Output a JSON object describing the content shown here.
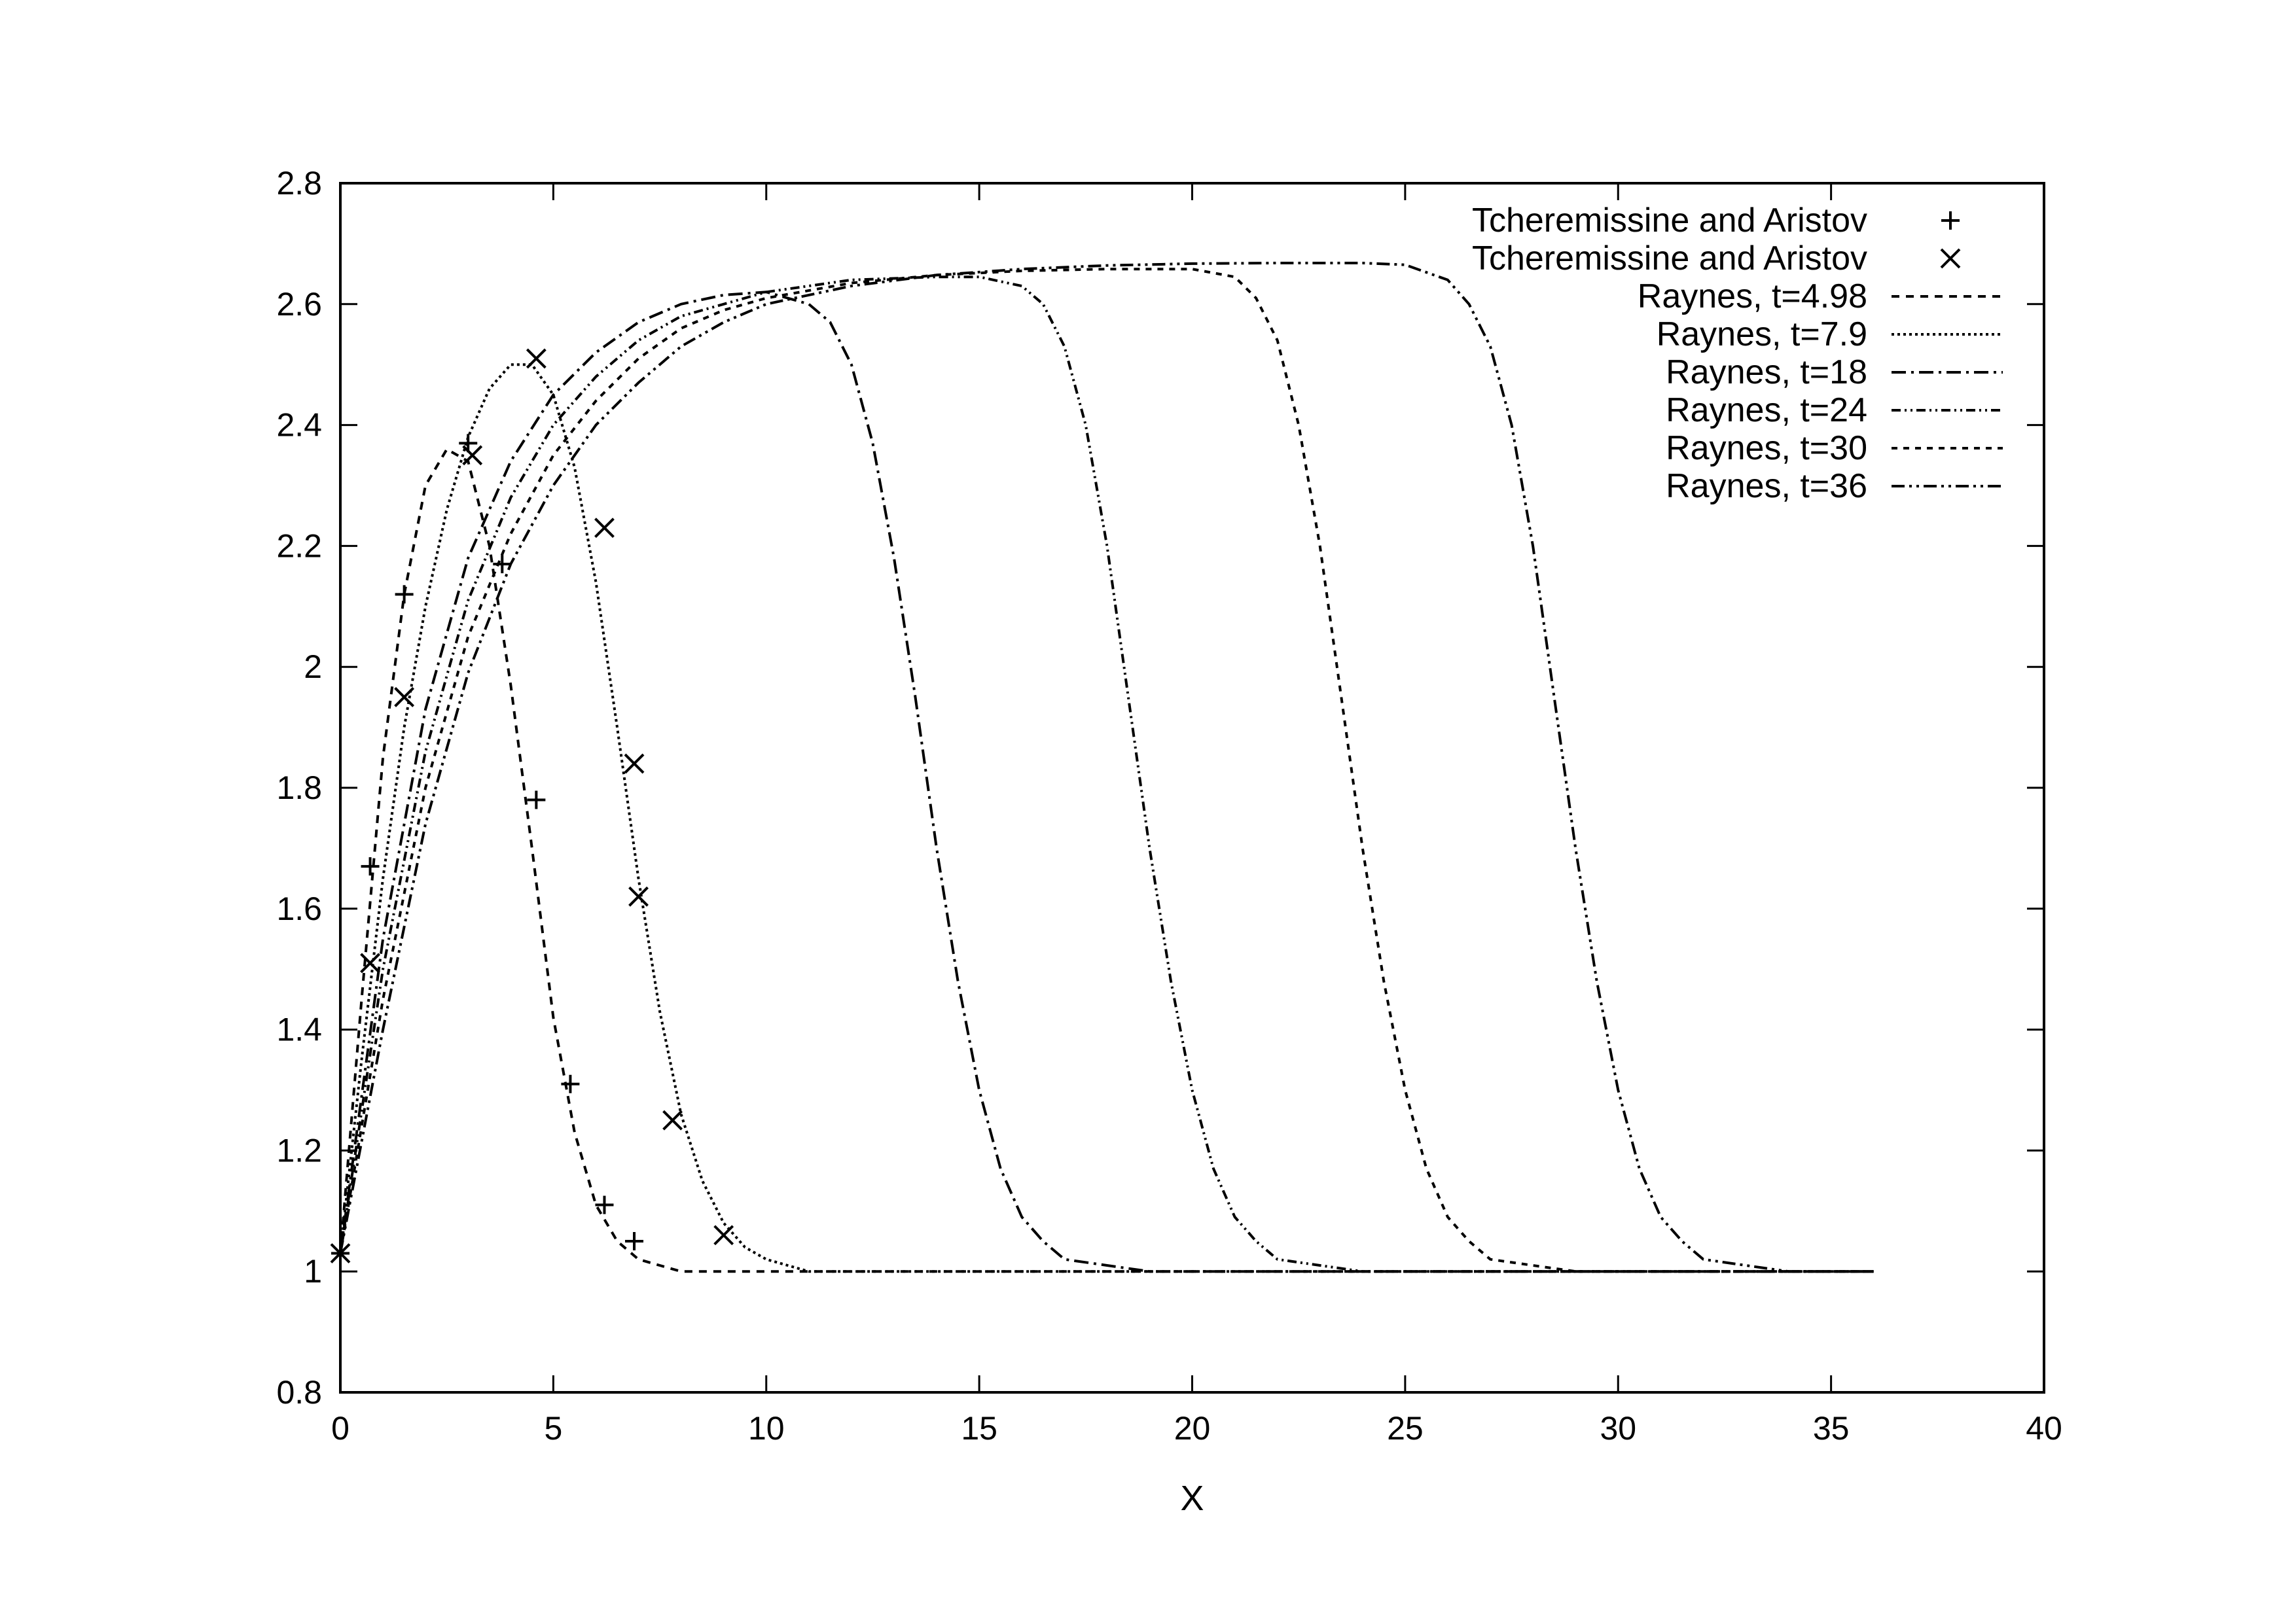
{
  "chart_data": {
    "type": "line",
    "title": "",
    "xlabel": "X",
    "ylabel": "",
    "xlim": [
      0,
      40
    ],
    "ylim": [
      0.8,
      2.8
    ],
    "xticks": [
      "0",
      "5",
      "10",
      "15",
      "20",
      "25",
      "30",
      "35",
      "40"
    ],
    "yticks": [
      "0.8",
      "1",
      "1.2",
      "1.4",
      "1.6",
      "1.8",
      "2",
      "2.2",
      "2.4",
      "2.6",
      "2.8"
    ],
    "grid": false,
    "legend_position": "top-right",
    "markers": [
      {
        "name": "Tcheremissine and Aristov",
        "marker": "plus",
        "x": [
          0.0,
          0.7,
          1.5,
          3.0,
          3.8,
          4.6,
          5.4,
          6.2,
          6.9
        ],
        "y": [
          1.03,
          1.67,
          2.12,
          2.37,
          2.17,
          1.78,
          1.31,
          1.11,
          1.05
        ]
      },
      {
        "name": "Tcheremissine and Aristov",
        "marker": "cross",
        "x": [
          0.0,
          0.7,
          1.5,
          3.1,
          4.6,
          6.2,
          6.9,
          7.0,
          7.8,
          9.0
        ],
        "y": [
          1.03,
          1.51,
          1.95,
          2.35,
          2.51,
          2.23,
          1.84,
          1.62,
          1.25,
          1.06
        ]
      }
    ],
    "series": [
      {
        "name": "Raynes,  t=4.98",
        "dash": "12,10",
        "x": [
          0,
          0.5,
          1,
          1.5,
          2,
          2.5,
          3,
          3.5,
          4,
          4.5,
          5,
          5.5,
          6,
          6.5,
          7,
          7.5,
          8,
          9,
          10,
          36
        ],
        "y": [
          1.03,
          1.45,
          1.85,
          2.12,
          2.3,
          2.36,
          2.34,
          2.2,
          1.97,
          1.7,
          1.42,
          1.23,
          1.11,
          1.05,
          1.02,
          1.01,
          1.0,
          1.0,
          1.0,
          1.0
        ]
      },
      {
        "name": "Raynes,  t=7.9",
        "dash": "4,5",
        "x": [
          0,
          0.5,
          1,
          1.5,
          2,
          2.5,
          3,
          3.5,
          4,
          4.5,
          5,
          5.5,
          6,
          6.5,
          7,
          7.5,
          8,
          8.5,
          9,
          9.5,
          10,
          11,
          12,
          36
        ],
        "y": [
          1.03,
          1.35,
          1.65,
          1.9,
          2.1,
          2.26,
          2.38,
          2.46,
          2.5,
          2.5,
          2.45,
          2.33,
          2.14,
          1.9,
          1.65,
          1.43,
          1.26,
          1.15,
          1.08,
          1.04,
          1.02,
          1.0,
          1.0,
          1.0
        ]
      },
      {
        "name": "Raynes,  t=18",
        "dash": "22,8,4,8",
        "x": [
          0,
          1,
          2,
          3,
          4,
          5,
          6,
          7,
          8,
          9,
          10,
          11,
          11.5,
          12,
          12.5,
          13,
          13.5,
          14,
          14.5,
          15,
          15.5,
          16,
          16.5,
          17,
          18,
          19,
          20,
          36
        ],
        "y": [
          1.03,
          1.55,
          1.93,
          2.18,
          2.34,
          2.45,
          2.52,
          2.57,
          2.6,
          2.615,
          2.62,
          2.6,
          2.57,
          2.5,
          2.37,
          2.18,
          1.95,
          1.7,
          1.48,
          1.3,
          1.17,
          1.09,
          1.05,
          1.02,
          1.01,
          1.0,
          1.0,
          1.0
        ]
      },
      {
        "name": "Raynes,  t=24",
        "dash": "14,6,3,6,3,6",
        "x": [
          0,
          1,
          2,
          3,
          4,
          5,
          6,
          7,
          8,
          9,
          10,
          12,
          14,
          15,
          16,
          16.5,
          17,
          17.5,
          18,
          18.5,
          19,
          19.5,
          20,
          20.5,
          21,
          21.5,
          22,
          23,
          24,
          36
        ],
        "y": [
          1.03,
          1.5,
          1.86,
          2.11,
          2.28,
          2.4,
          2.48,
          2.54,
          2.58,
          2.6,
          2.62,
          2.64,
          2.645,
          2.645,
          2.63,
          2.6,
          2.53,
          2.4,
          2.2,
          1.95,
          1.7,
          1.48,
          1.3,
          1.17,
          1.09,
          1.05,
          1.02,
          1.01,
          1.0,
          1.0
        ]
      },
      {
        "name": "Raynes,  t=30",
        "dash": "9,9",
        "x": [
          0,
          1,
          2,
          3,
          4,
          5,
          6,
          7,
          8,
          9,
          10,
          12,
          14,
          16,
          18,
          20,
          21,
          21.5,
          22,
          22.5,
          23,
          23.5,
          24,
          24.5,
          25,
          25.5,
          26,
          26.5,
          27,
          28,
          29,
          36
        ],
        "y": [
          1.03,
          1.45,
          1.8,
          2.05,
          2.22,
          2.35,
          2.44,
          2.51,
          2.56,
          2.59,
          2.61,
          2.635,
          2.648,
          2.655,
          2.658,
          2.658,
          2.645,
          2.61,
          2.54,
          2.4,
          2.2,
          1.95,
          1.7,
          1.48,
          1.3,
          1.17,
          1.09,
          1.05,
          1.02,
          1.01,
          1.0,
          1.0
        ]
      },
      {
        "name": "Raynes,  t=36",
        "dash": "20,7,4,7,4,7",
        "x": [
          0,
          1,
          2,
          3,
          4,
          5,
          6,
          7,
          8,
          9,
          10,
          12,
          14,
          16,
          18,
          20,
          22,
          24,
          25,
          26,
          26.5,
          27,
          27.5,
          28,
          28.5,
          29,
          29.5,
          30,
          30.5,
          31,
          31.5,
          32,
          33,
          34,
          36
        ],
        "y": [
          1.03,
          1.4,
          1.74,
          1.99,
          2.17,
          2.3,
          2.4,
          2.47,
          2.53,
          2.57,
          2.6,
          2.63,
          2.648,
          2.658,
          2.664,
          2.667,
          2.668,
          2.668,
          2.665,
          2.64,
          2.6,
          2.53,
          2.4,
          2.2,
          1.95,
          1.7,
          1.48,
          1.3,
          1.17,
          1.09,
          1.05,
          1.02,
          1.01,
          1.0,
          1.0
        ]
      }
    ]
  }
}
